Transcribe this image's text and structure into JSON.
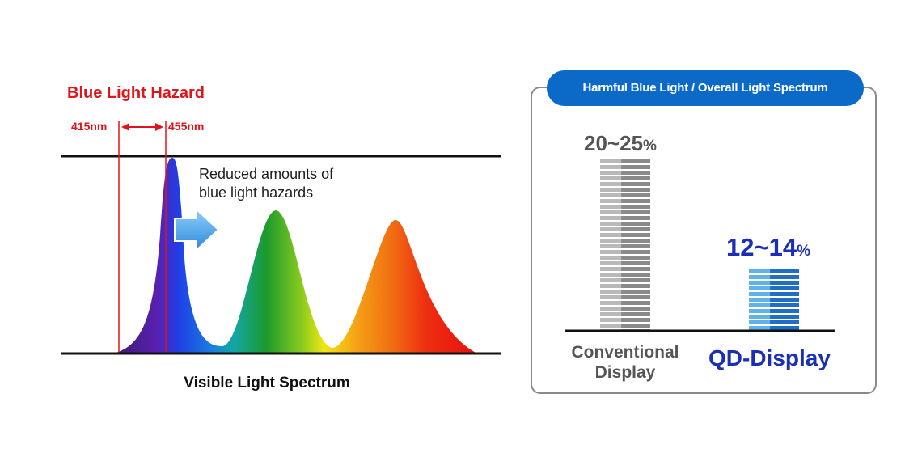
{
  "spectrum": {
    "hazard_title": "Blue Light Hazard",
    "range_start": "415nm",
    "range_end": "455nm",
    "annotation_line1": "Reduced amounts of",
    "annotation_line2": "blue light hazards",
    "caption": "Visible Light Spectrum",
    "colors": {
      "hazard_red": "#e0151b",
      "blue_peak": "#1d3ee8",
      "green_peak": "#1c9a2d",
      "red_peak": "#ee2e10",
      "arrow": "#3fa0e6"
    }
  },
  "comparison": {
    "header": "Harmful Blue Light / Overall Light Spectrum",
    "conventional": {
      "value": "20~25",
      "unit": "%",
      "label_line1": "Conventional",
      "label_line2": "Display"
    },
    "qd": {
      "value": "12~14",
      "unit": "%",
      "label": "QD-Display"
    },
    "colors": {
      "header_bg": "#0b69c7",
      "qd_blue": "#1a2fb4",
      "conventional_gray": "#555555"
    }
  }
}
